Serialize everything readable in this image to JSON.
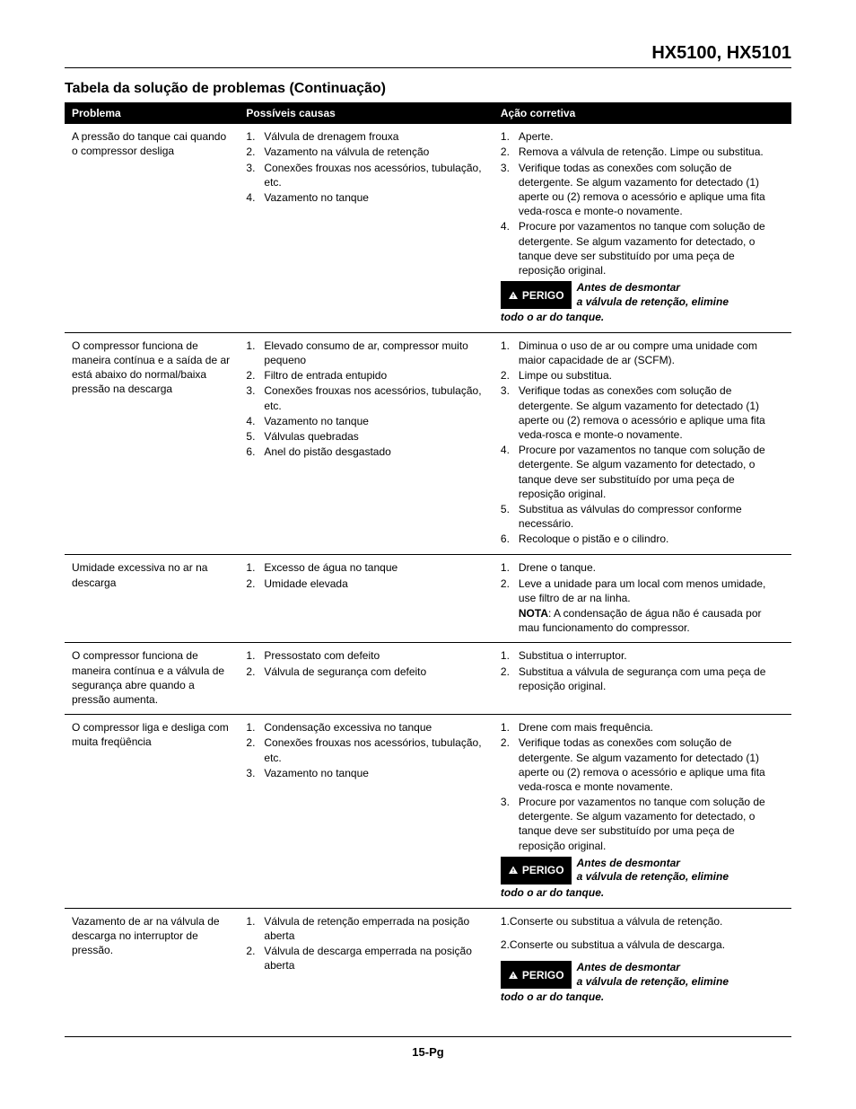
{
  "header": {
    "models": "HX5100, HX5101"
  },
  "section": {
    "title": "Tabela da solução de problemas (Continuação)"
  },
  "columns": {
    "c1": "Problema",
    "c2": "Possíveis causas",
    "c3": "Ação corretiva"
  },
  "danger_label": "PERIGO",
  "danger_text_line1": "Antes de desmontar",
  "danger_text_line2": "a válvula de retenção, elimine",
  "danger_text_line3": "todo o ar do tanque.",
  "note_label": "NOTA",
  "rows": [
    {
      "problem": "A pressão do tanque cai quando o compressor desliga",
      "causes": [
        "Válvula de drenagem frouxa",
        "Vazamento na válvula de retenção",
        "Conexões frouxas nos acessórios, tubulação, etc.",
        "Vazamento no tanque"
      ],
      "actions": [
        "Aperte.",
        "Remova a válvula de retenção. Limpe ou substitua.",
        "Verifique todas as conexões com solução de detergente. Se algum vazamento for detectado (1) aperte ou (2) remova o acessório e aplique uma fita veda-rosca e monte-o novamente.",
        "Procure por vazamentos no tanque com solução de detergente. Se algum vazamento for detectado, o tanque deve ser substituído por uma peça de reposição original."
      ],
      "has_danger": true
    },
    {
      "problem": "O compressor funciona de maneira contínua e a saída de ar está abaixo do normal/baixa pressão na descarga",
      "causes": [
        "Elevado consumo de ar, compressor muito pequeno",
        "Filtro de entrada entupido",
        "Conexões frouxas nos acessórios, tubulação, etc.",
        "Vazamento no tanque",
        "Válvulas quebradas",
        "Anel do pistão desgastado"
      ],
      "actions": [
        "Diminua o uso de ar ou compre uma unidade com maior capacidade de ar (SCFM).",
        "Limpe ou substitua.",
        "Verifique todas as conexões com solução de detergente. Se algum vazamento for detectado (1) aperte ou (2) remova o acessório e aplique uma fita veda-rosca e monte-o novamente.",
        "Procure por vazamentos no tanque com solução de detergente. Se algum vazamento for detectado, o tanque deve ser substituído por uma peça de reposição original.",
        "Substitua as válvulas do compressor conforme necessário.",
        "Recoloque o pistão e o cilindro."
      ],
      "has_danger": false
    },
    {
      "problem": "Umidade excessiva no ar na descarga",
      "causes": [
        "Excesso de água no tanque",
        "Umidade elevada"
      ],
      "actions": [
        "Drene o tanque.",
        "Leve a unidade para um local com menos umidade, use filtro de ar na linha."
      ],
      "has_note": true,
      "note_text": ": A condensação de água não é causada por mau funcionamento do compressor.",
      "has_danger": false
    },
    {
      "problem": "O compressor funciona de maneira contínua e a válvula de segurança abre quando a pressão aumenta.",
      "causes": [
        "Pressostato com defeito",
        "Válvula de segurança com defeito"
      ],
      "actions": [
        "Substitua o interruptor.",
        "Substitua a válvula de segurança com uma peça de reposição original."
      ],
      "has_danger": false
    },
    {
      "problem": "O compressor liga e desliga com muita freqüência",
      "causes": [
        "Condensação excessiva no tanque",
        "Conexões frouxas nos acessórios, tubulação, etc.",
        "Vazamento no tanque"
      ],
      "actions": [
        "Drene com mais frequência.",
        "Verifique todas as conexões com solução de detergente. Se algum vazamento for detectado (1) aperte ou (2) remova o acessório e aplique uma fita veda-rosca e monte novamente.",
        "Procure por vazamentos no tanque com solução de detergente. Se algum vazamento for detectado, o tanque deve ser substituído por uma peça de reposição original."
      ],
      "has_danger": true
    },
    {
      "problem": "Vazamento de ar na válvula de descarga no interruptor de pressão.",
      "causes": [
        "Válvula de retenção emperrada na posição aberta",
        "Válvula de descarga emperrada na posição aberta"
      ],
      "actions_plain": [
        "1.Conserte ou substitua a válvula de retenção.",
        "2.Conserte ou substitua a válvula de descarga."
      ],
      "has_danger": true
    }
  ],
  "footer": {
    "page": "15-Pg"
  }
}
